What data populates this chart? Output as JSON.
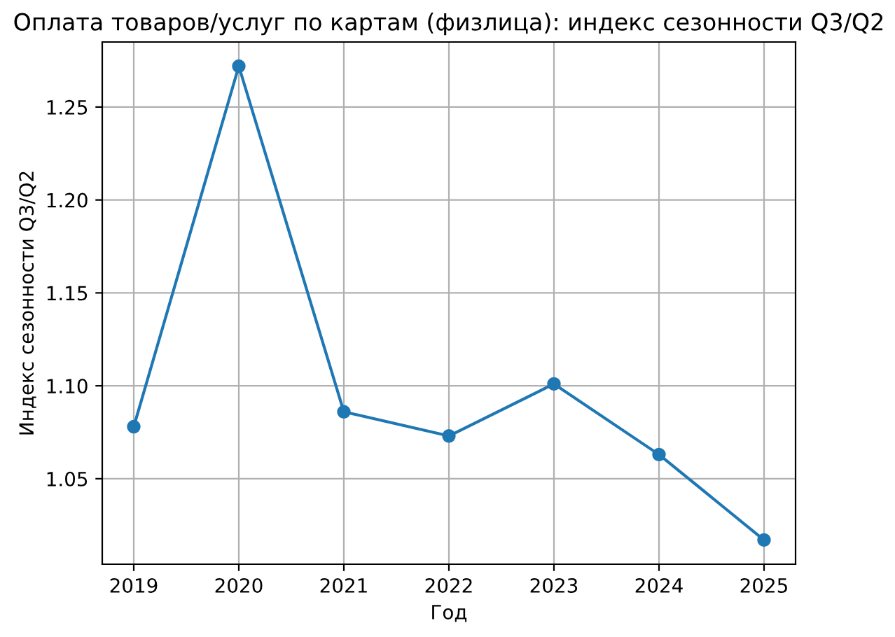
{
  "chart_data": {
    "type": "line",
    "title": "Оплата товаров/услуг по картам (физлица): индекс сезонности Q3/Q2",
    "xlabel": "Год",
    "ylabel": "Индекс сезонности Q3/Q2",
    "x": [
      2019,
      2020,
      2021,
      2022,
      2023,
      2024,
      2025
    ],
    "series": [
      {
        "color": "#1f77b4",
        "values": [
          1.078,
          1.272,
          1.086,
          1.073,
          1.101,
          1.063,
          1.017
        ]
      }
    ],
    "xlim": [
      2018.7,
      2025.3
    ],
    "xticks": [
      2019,
      2020,
      2021,
      2022,
      2023,
      2024,
      2025
    ],
    "ylim": [
      1.004,
      1.285
    ],
    "yticks": [
      {
        "value": 1.05,
        "label": "1.05"
      },
      {
        "value": 1.1,
        "label": "1.10"
      },
      {
        "value": 1.15,
        "label": "1.15"
      },
      {
        "value": 1.2,
        "label": "1.20"
      },
      {
        "value": 1.25,
        "label": "1.25"
      }
    ],
    "grid": true,
    "marker": "circle",
    "line_style": "solid"
  }
}
